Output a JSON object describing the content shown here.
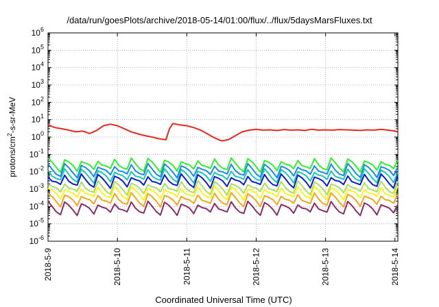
{
  "chart_data": {
    "type": "line",
    "title": "/data/run/goesPlots/archive/2018-05-14/01:00/flux/../flux/5daysMarsFluxes.txt",
    "xlabel": "Coordinated Universal Time (UTC)",
    "ylabel": "protons/cm2-s-sr-MeV",
    "yscale": "log",
    "ylim": [
      1e-06,
      1000000.0
    ],
    "xlim": [
      "2018-05-09",
      "2018-05-14 01:00"
    ],
    "x_tick_labels": [
      "2018-5-9",
      "2018-5-10",
      "2018-5-11",
      "2018-5-12",
      "2018-5-13",
      "2018-5-14"
    ],
    "y_tick_labels": [
      "10-6",
      "10-5",
      "10-4",
      "10-3",
      "10-2",
      "10-1",
      "100",
      "101",
      "102",
      "103",
      "104",
      "105",
      "106"
    ],
    "grid": true,
    "series": [
      {
        "color": "#e8261b",
        "x_days": [
          0.0,
          0.1,
          0.2,
          0.3,
          0.4,
          0.5,
          0.6,
          0.7,
          0.8,
          0.9,
          1.0,
          1.1,
          1.2,
          1.3,
          1.4,
          1.5,
          1.6,
          1.7,
          1.75,
          1.8,
          1.9,
          2.0,
          2.1,
          2.2,
          2.3,
          2.4,
          2.5,
          2.6,
          2.7,
          2.8,
          2.9,
          3.0,
          3.1,
          3.2,
          3.3,
          3.4,
          3.5,
          3.6,
          3.7,
          3.8,
          3.9,
          4.0,
          4.1,
          4.2,
          4.3,
          4.4,
          4.5,
          4.6,
          4.7,
          4.8,
          4.9,
          5.0,
          5.04
        ],
        "values": [
          5,
          3.5,
          3,
          2.5,
          2,
          2.2,
          1.6,
          2.4,
          4.5,
          5.5,
          4.5,
          3,
          2,
          1.5,
          1.2,
          1,
          0.8,
          0.7,
          3,
          6,
          5,
          4.5,
          3.5,
          2.5,
          1.5,
          0.9,
          0.6,
          0.7,
          1.2,
          2,
          2.5,
          2.8,
          2.5,
          2.6,
          2.4,
          2.7,
          2.5,
          2.6,
          2.4,
          2.8,
          2.5,
          2.6,
          2.5,
          2.7,
          2.6,
          2.5,
          2.4,
          2.6,
          2.5,
          2.8,
          2.5,
          2.2,
          2.0
        ]
      },
      {
        "color": "#2cf02c",
        "base": 0.025,
        "amp": 0.02
      },
      {
        "color": "#1a88e8",
        "base": 0.012,
        "amp": 0.01
      },
      {
        "color": "#13c9b6",
        "base": 0.006,
        "amp": 0.004
      },
      {
        "color": "#0b18d6",
        "base": 0.003,
        "amp": 0.002
      },
      {
        "color": "#a8e05a",
        "base": 0.0012,
        "amp": 0.0009
      },
      {
        "color": "#f5f51e",
        "base": 0.0006,
        "amp": 0.0005
      },
      {
        "color": "#f2a51a",
        "base": 0.00025,
        "amp": 0.0002
      },
      {
        "color": "#8b2a6a",
        "base": 8e-05,
        "amp": 7e-05
      }
    ]
  }
}
